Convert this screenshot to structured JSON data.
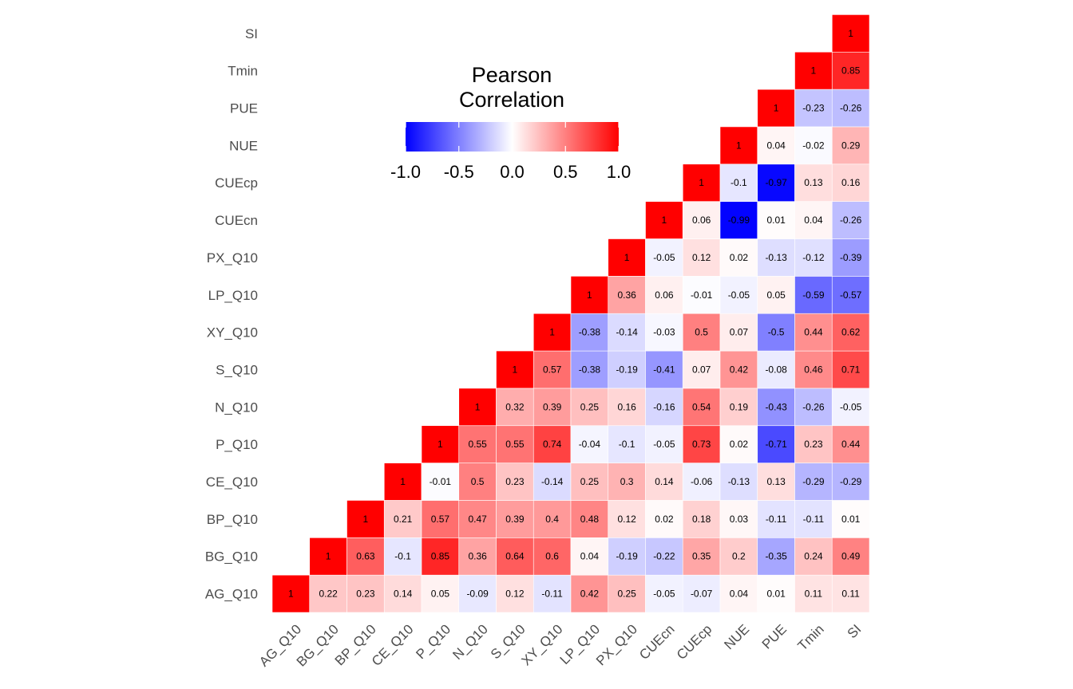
{
  "chart_data": {
    "type": "heatmap",
    "variables": [
      "AG_Q10",
      "BG_Q10",
      "BP_Q10",
      "CE_Q10",
      "P_Q10",
      "N_Q10",
      "S_Q10",
      "XY_Q10",
      "LP_Q10",
      "PX_Q10",
      "CUEcn",
      "CUEcp",
      "NUE",
      "PUE",
      "Tmin",
      "SI"
    ],
    "matrix": [
      [
        1,
        0.22,
        0.23,
        0.14,
        0.05,
        -0.09,
        0.12,
        -0.11,
        0.42,
        0.25,
        -0.05,
        -0.07,
        0.04,
        0.01,
        0.11,
        0.11
      ],
      [
        0.22,
        1,
        0.63,
        -0.1,
        0.85,
        0.36,
        0.64,
        0.6,
        0.04,
        -0.19,
        -0.22,
        0.35,
        0.2,
        -0.35,
        0.24,
        0.49
      ],
      [
        0.23,
        0.63,
        1,
        0.21,
        0.57,
        0.47,
        0.39,
        0.4,
        0.48,
        0.12,
        0.02,
        0.18,
        0.03,
        -0.11,
        -0.11,
        0.01
      ],
      [
        0.14,
        -0.1,
        0.21,
        1,
        -0.01,
        0.5,
        0.23,
        -0.14,
        0.25,
        0.3,
        0.14,
        -0.06,
        -0.13,
        0.13,
        -0.29,
        -0.29
      ],
      [
        0.05,
        0.85,
        0.57,
        -0.01,
        1,
        0.55,
        0.55,
        0.74,
        -0.04,
        -0.1,
        -0.05,
        0.73,
        0.02,
        -0.71,
        0.23,
        0.44
      ],
      [
        -0.09,
        0.36,
        0.47,
        0.5,
        0.55,
        1,
        0.32,
        0.39,
        0.25,
        0.16,
        -0.16,
        0.54,
        0.19,
        -0.43,
        -0.26,
        -0.05
      ],
      [
        0.12,
        0.64,
        0.39,
        0.23,
        0.55,
        0.32,
        1,
        0.57,
        -0.38,
        -0.19,
        -0.41,
        0.07,
        0.42,
        -0.08,
        0.46,
        0.71
      ],
      [
        -0.11,
        0.6,
        0.4,
        -0.14,
        0.74,
        0.39,
        0.57,
        1,
        -0.38,
        -0.14,
        -0.03,
        0.5,
        0.07,
        -0.5,
        0.44,
        0.62
      ],
      [
        0.42,
        0.04,
        0.48,
        0.25,
        -0.04,
        0.25,
        -0.38,
        -0.38,
        1,
        0.36,
        0.06,
        -0.01,
        -0.05,
        0.05,
        -0.59,
        -0.57
      ],
      [
        0.25,
        -0.19,
        0.12,
        0.3,
        -0.1,
        0.16,
        -0.19,
        -0.14,
        0.36,
        1,
        -0.05,
        0.12,
        0.02,
        -0.13,
        -0.12,
        -0.39
      ],
      [
        -0.05,
        -0.22,
        0.02,
        0.14,
        -0.05,
        -0.16,
        -0.41,
        -0.03,
        0.06,
        -0.05,
        1,
        0.06,
        -0.99,
        0.01,
        0.04,
        -0.26
      ],
      [
        -0.07,
        0.35,
        0.18,
        -0.06,
        0.73,
        0.54,
        0.07,
        0.5,
        -0.01,
        0.12,
        0.06,
        1,
        -0.1,
        -0.97,
        0.13,
        0.16
      ],
      [
        0.04,
        0.2,
        0.03,
        -0.13,
        0.02,
        0.19,
        0.42,
        0.07,
        -0.05,
        0.02,
        -0.99,
        -0.1,
        1,
        0.04,
        -0.02,
        0.29
      ],
      [
        0.01,
        -0.35,
        -0.11,
        0.13,
        -0.71,
        -0.43,
        -0.08,
        -0.5,
        0.05,
        -0.13,
        0.01,
        -0.97,
        0.04,
        1,
        -0.23,
        -0.26
      ],
      [
        0.11,
        0.24,
        -0.11,
        -0.29,
        0.23,
        -0.26,
        0.46,
        0.44,
        -0.59,
        -0.12,
        0.04,
        0.13,
        -0.02,
        -0.23,
        1,
        0.85
      ],
      [
        0.11,
        0.49,
        0.01,
        -0.29,
        0.44,
        -0.05,
        0.71,
        0.62,
        -0.57,
        -0.39,
        -0.26,
        0.16,
        0.29,
        -0.26,
        0.85,
        1
      ]
    ],
    "triangle": "upper",
    "legend": {
      "title_lines": [
        "Pearson",
        "Correlation"
      ],
      "ticks": [
        "-1.0",
        "-0.5",
        "0.0",
        "0.5",
        "1.0"
      ],
      "range": [
        -1,
        1
      ],
      "colors": {
        "low": "#0000ff",
        "mid": "#ffffff",
        "high": "#ff0000"
      },
      "placement": "top-left inside plot"
    }
  }
}
